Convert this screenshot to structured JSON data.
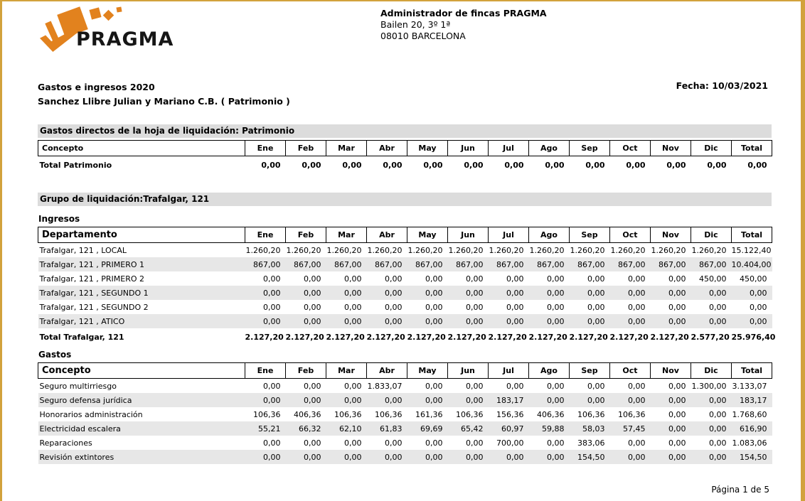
{
  "page": {
    "footer_text": "Página 1 de 5",
    "border_color": "#D2A23C",
    "background": "#FFFFFF"
  },
  "colors": {
    "logo_orange": "#E2821E",
    "section_band_gray": "#DCDCDC",
    "row_stripe_gray": "#E7E7E7"
  },
  "header": {
    "logo_text": "PRAGMA",
    "company_name": "Administrador de fincas PRAGMA",
    "company_address1": "Bailen 20, 3º 1ª",
    "company_address2": "08010 BARCELONA"
  },
  "report": {
    "title": "Gastos e ingresos 2020",
    "subtitle": "Sanchez Llibre Julian y Mariano C.B. ( Patrimonio )",
    "date": "Fecha: 10/03/2021"
  },
  "months": [
    "Ene",
    "Feb",
    "Mar",
    "Abr",
    "May",
    "Jun",
    "Jul",
    "Ago",
    "Sep",
    "Oct",
    "Nov",
    "Dic",
    "Total"
  ],
  "patrimonio_table": {
    "section_title": "Gastos directos de la hoja de liquidación: Patrimonio",
    "first_column_header": "Concepto",
    "big_header": false,
    "rows": [
      {
        "label": "Total Patrimonio",
        "bold": true,
        "values": [
          "0,00",
          "0,00",
          "0,00",
          "0,00",
          "0,00",
          "0,00",
          "0,00",
          "0,00",
          "0,00",
          "0,00",
          "0,00",
          "0,00",
          "0,00"
        ]
      }
    ]
  },
  "liquidation_group": {
    "title": "Grupo de liquidación:Trafalgar, 121",
    "ingresos": {
      "label": "Ingresos",
      "first_column_header": "Departamento",
      "big_header": true,
      "rows": [
        {
          "label": "Trafalgar, 121 , LOCAL",
          "values": [
            "1.260,20",
            "1.260,20",
            "1.260,20",
            "1.260,20",
            "1.260,20",
            "1.260,20",
            "1.260,20",
            "1.260,20",
            "1.260,20",
            "1.260,20",
            "1.260,20",
            "1.260,20",
            "15.122,40"
          ]
        },
        {
          "label": "Trafalgar, 121 , PRIMERO 1",
          "values": [
            "867,00",
            "867,00",
            "867,00",
            "867,00",
            "867,00",
            "867,00",
            "867,00",
            "867,00",
            "867,00",
            "867,00",
            "867,00",
            "867,00",
            "10.404,00"
          ]
        },
        {
          "label": "Trafalgar, 121 , PRIMERO 2",
          "values": [
            "0,00",
            "0,00",
            "0,00",
            "0,00",
            "0,00",
            "0,00",
            "0,00",
            "0,00",
            "0,00",
            "0,00",
            "0,00",
            "450,00",
            "450,00"
          ]
        },
        {
          "label": "Trafalgar, 121 , SEGUNDO 1",
          "values": [
            "0,00",
            "0,00",
            "0,00",
            "0,00",
            "0,00",
            "0,00",
            "0,00",
            "0,00",
            "0,00",
            "0,00",
            "0,00",
            "0,00",
            "0,00"
          ]
        },
        {
          "label": "Trafalgar, 121 , SEGUNDO 2",
          "values": [
            "0,00",
            "0,00",
            "0,00",
            "0,00",
            "0,00",
            "0,00",
            "0,00",
            "0,00",
            "0,00",
            "0,00",
            "0,00",
            "0,00",
            "0,00"
          ]
        },
        {
          "label": "Trafalgar, 121 , ATICO",
          "values": [
            "0,00",
            "0,00",
            "0,00",
            "0,00",
            "0,00",
            "0,00",
            "0,00",
            "0,00",
            "0,00",
            "0,00",
            "0,00",
            "0,00",
            "0,00"
          ]
        }
      ],
      "total_row": {
        "label": "Total Trafalgar, 121",
        "bold": true,
        "values": [
          "2.127,20",
          "2.127,20",
          "2.127,20",
          "2.127,20",
          "2.127,20",
          "2.127,20",
          "2.127,20",
          "2.127,20",
          "2.127,20",
          "2.127,20",
          "2.127,20",
          "2.577,20",
          "25.976,40"
        ]
      }
    },
    "gastos": {
      "label": "Gastos",
      "first_column_header": "Concepto",
      "big_header": true,
      "rows": [
        {
          "label": "Seguro multirriesgo",
          "values": [
            "0,00",
            "0,00",
            "0,00",
            "1.833,07",
            "0,00",
            "0,00",
            "0,00",
            "0,00",
            "0,00",
            "0,00",
            "0,00",
            "1.300,00",
            "3.133,07"
          ]
        },
        {
          "label": "Seguro defensa jurídica",
          "values": [
            "0,00",
            "0,00",
            "0,00",
            "0,00",
            "0,00",
            "0,00",
            "183,17",
            "0,00",
            "0,00",
            "0,00",
            "0,00",
            "0,00",
            "183,17"
          ]
        },
        {
          "label": "Honorarios administración",
          "values": [
            "106,36",
            "406,36",
            "106,36",
            "106,36",
            "161,36",
            "106,36",
            "156,36",
            "406,36",
            "106,36",
            "106,36",
            "0,00",
            "0,00",
            "1.768,60"
          ]
        },
        {
          "label": "Electricidad escalera",
          "values": [
            "55,21",
            "66,32",
            "62,10",
            "61,83",
            "69,69",
            "65,42",
            "60,97",
            "59,88",
            "58,03",
            "57,45",
            "0,00",
            "0,00",
            "616,90"
          ]
        },
        {
          "label": "Reparaciones",
          "values": [
            "0,00",
            "0,00",
            "0,00",
            "0,00",
            "0,00",
            "0,00",
            "700,00",
            "0,00",
            "383,06",
            "0,00",
            "0,00",
            "0,00",
            "1.083,06"
          ]
        },
        {
          "label": "Revisión extintores",
          "values": [
            "0,00",
            "0,00",
            "0,00",
            "0,00",
            "0,00",
            "0,00",
            "0,00",
            "0,00",
            "154,50",
            "0,00",
            "0,00",
            "0,00",
            "154,50"
          ]
        }
      ]
    }
  }
}
